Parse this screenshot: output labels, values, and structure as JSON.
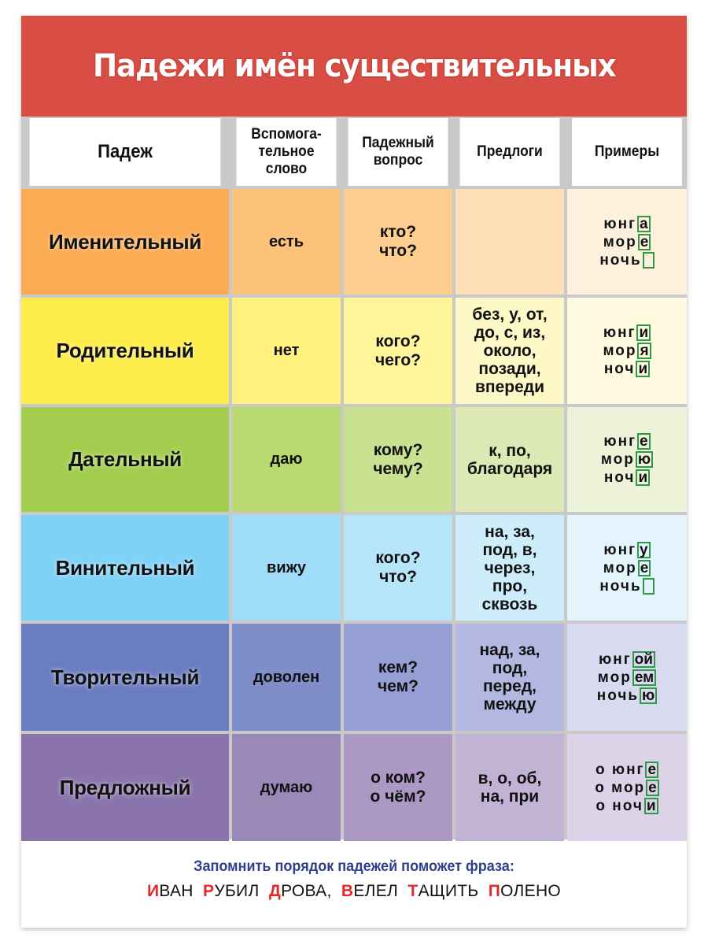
{
  "title": "Падежи имён существительных",
  "headers": [
    "Падеж",
    "Вспомога-\nтельное\nслово",
    "Падежный\nвопрос",
    "Предлоги",
    "Примеры"
  ],
  "rows": [
    {
      "case": "Именительный",
      "helper": "есть",
      "question": [
        "кто?",
        "что?"
      ],
      "prepositions": [],
      "examples": [
        {
          "stem": "юнг",
          "ending": "а"
        },
        {
          "stem": "мор",
          "ending": "е"
        },
        {
          "stem": "ночь",
          "ending": ""
        }
      ],
      "colors": [
        "#fbab54",
        "#fdc27a",
        "#fdce90",
        "#fde0b6",
        "#fdf0dd"
      ]
    },
    {
      "case": "Родительный",
      "helper": "нет",
      "question": [
        "кого?",
        "чего?"
      ],
      "prepositions": [
        "без, у, от,",
        "до, с, из,",
        "около,",
        "позади,",
        "впереди"
      ],
      "examples": [
        {
          "stem": "юнг",
          "ending": "и"
        },
        {
          "stem": "мор",
          "ending": "я"
        },
        {
          "stem": "ноч",
          "ending": "и"
        }
      ],
      "colors": [
        "#fdec4a",
        "#fef27c",
        "#fef49a",
        "#fef8c6",
        "#fefbe0"
      ]
    },
    {
      "case": "Дательный",
      "helper": "даю",
      "question": [
        "кому?",
        "чему?"
      ],
      "prepositions": [
        "к, по,",
        "благодаря"
      ],
      "examples": [
        {
          "stem": "юнг",
          "ending": "е"
        },
        {
          "stem": "мор",
          "ending": "ю"
        },
        {
          "stem": "ноч",
          "ending": "и"
        }
      ],
      "colors": [
        "#a3cd4e",
        "#b8da6e",
        "#c9e292",
        "#dce9b5",
        "#edf3d9"
      ]
    },
    {
      "case": "Винительный",
      "helper": "вижу",
      "question": [
        "кого?",
        "что?"
      ],
      "prepositions": [
        "на, за,",
        "под, в,",
        "через,",
        "про,",
        "сквозь"
      ],
      "examples": [
        {
          "stem": "юнг",
          "ending": "у"
        },
        {
          "stem": "мор",
          "ending": "е"
        },
        {
          "stem": "ночь",
          "ending": ""
        }
      ],
      "colors": [
        "#7fd2f6",
        "#9edcf8",
        "#b6e4f9",
        "#cdedfb",
        "#e3f4fd"
      ]
    },
    {
      "case": "Творительный",
      "helper": "доволен",
      "question": [
        "кем?",
        "чем?"
      ],
      "prepositions": [
        "над, за,",
        "под,",
        "перед,",
        "между"
      ],
      "examples": [
        {
          "stem": "юнг",
          "ending": "ой"
        },
        {
          "stem": "мор",
          "ending": "ем"
        },
        {
          "stem": "ночь",
          "ending": "ю"
        }
      ],
      "colors": [
        "#6a7dc0",
        "#7f8ec9",
        "#969fd3",
        "#b3b8e0",
        "#d8daef"
      ]
    },
    {
      "case": "Предложный",
      "helper": "думаю",
      "question": [
        "о ком?",
        "о чём?"
      ],
      "prepositions": [
        "в, о, об,",
        "на, при"
      ],
      "examples": [
        {
          "stem": "о юнг",
          "ending": "е"
        },
        {
          "stem": "о мор",
          "ending": "е"
        },
        {
          "stem": "о ноч",
          "ending": "и"
        }
      ],
      "colors": [
        "#8a74ab",
        "#9a88b7",
        "#ab98c3",
        "#c2b3d5",
        "#dcd3e8"
      ]
    }
  ],
  "footer": {
    "hint": "Запомнить порядок падежей поможет фраза:",
    "phrase": [
      {
        "cap": "И",
        "rest": "ВАН"
      },
      {
        "cap": "Р",
        "rest": "УБИЛ"
      },
      {
        "cap": "Д",
        "rest": "РОВА,"
      },
      {
        "cap": "В",
        "rest": "ЕЛЕЛ"
      },
      {
        "cap": "Т",
        "rest": "АЩИТЬ"
      },
      {
        "cap": "П",
        "rest": "ОЛЕНО"
      }
    ]
  },
  "colors": {
    "title_bg": "#d94e44",
    "grid_line": "#c9c9c9",
    "ending_box": "#2f9a46",
    "hint_text": "#2e3f8f",
    "phrase_cap": "#e32a2a"
  }
}
